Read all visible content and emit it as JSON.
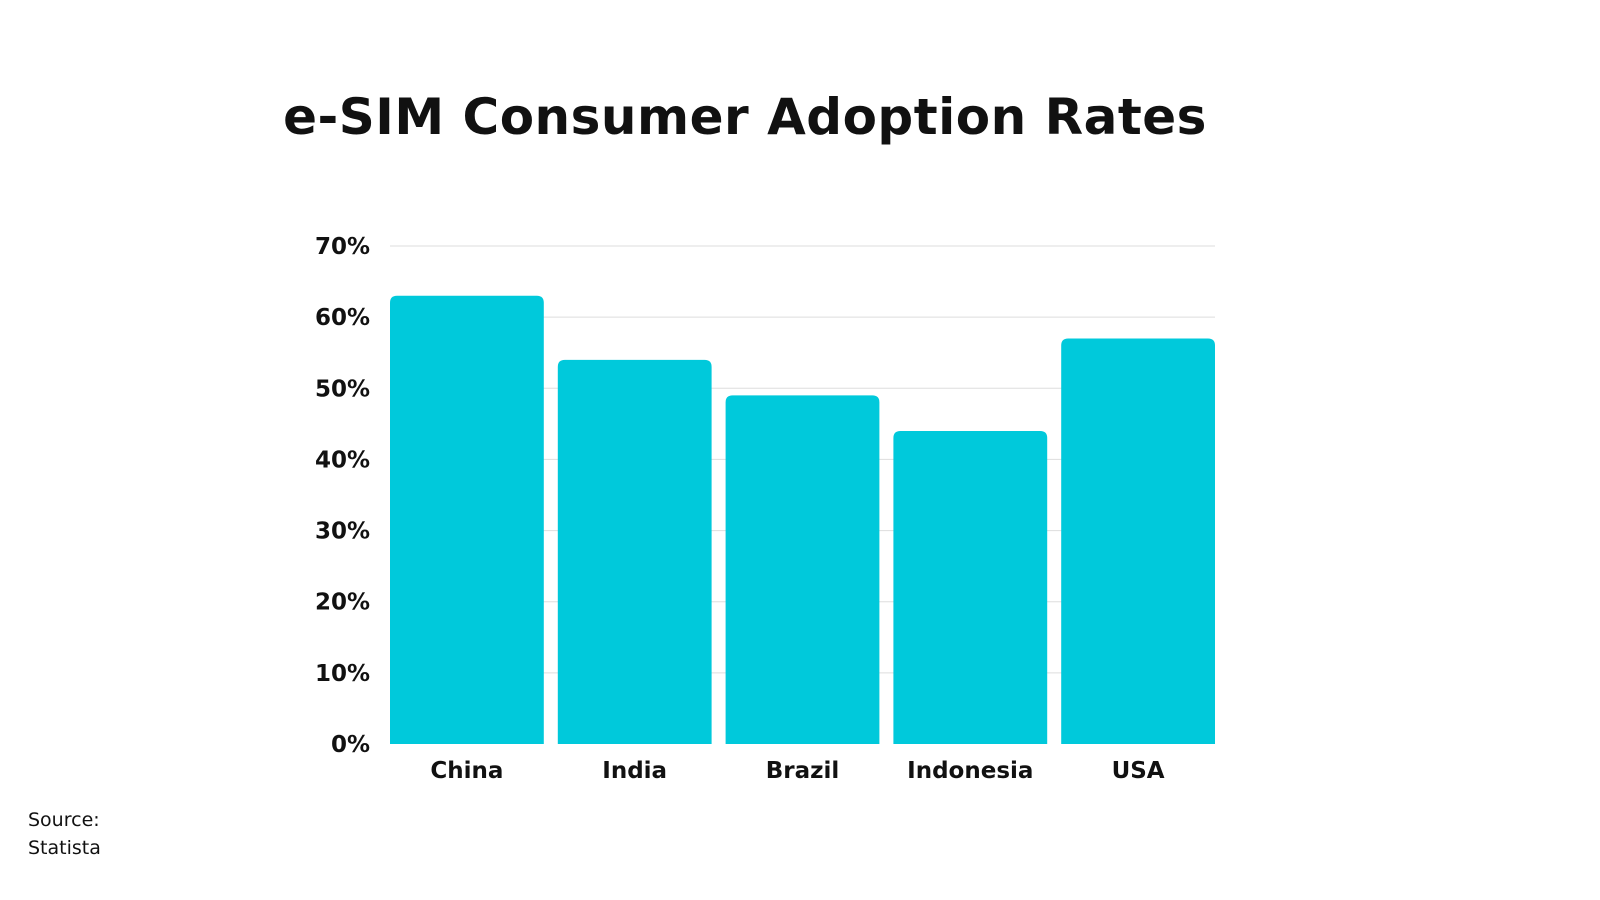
{
  "chart_data": {
    "type": "bar",
    "title": "e-SIM Consumer Adoption Rates",
    "categories": [
      "China",
      "India",
      "Brazil",
      "Indonesia",
      "USA"
    ],
    "values": [
      63,
      54,
      49,
      44,
      57
    ],
    "ylim": [
      0,
      70
    ],
    "yticks": [
      0,
      10,
      20,
      30,
      40,
      50,
      60,
      70
    ],
    "ytick_suffix": "%",
    "xlabel": "",
    "ylabel": "",
    "grid": true,
    "bar_color": "#00C9DB",
    "grid_color": "#DDDDDD"
  },
  "source": {
    "label": "Source:",
    "name": "Statista"
  }
}
